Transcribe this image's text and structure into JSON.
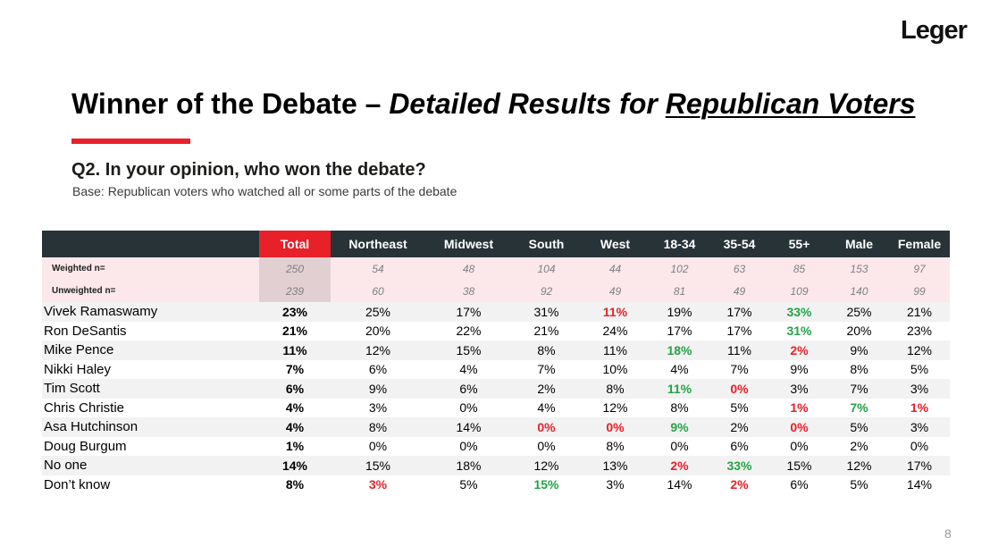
{
  "logo": {
    "text": "Leger"
  },
  "title": {
    "part1": "Winner of the Debate – ",
    "part2": "Detailed Results for ",
    "part3": "Republican Voters"
  },
  "question": "Q2. In your opinion, who won the debate?",
  "base": "Base: Republican voters who watched all or some parts of the debate",
  "table": {
    "columns": [
      "Total",
      "Northeast",
      "Midwest",
      "South",
      "West",
      "18-34",
      "35-54",
      "55+",
      "Male",
      "Female"
    ],
    "weighted": {
      "label": "Weighted n=",
      "values": [
        "250",
        "54",
        "48",
        "104",
        "44",
        "102",
        "63",
        "85",
        "153",
        "97"
      ]
    },
    "unweighted": {
      "label": "Unweighted n=",
      "values": [
        "239",
        "60",
        "38",
        "92",
        "49",
        "81",
        "49",
        "109",
        "140",
        "99"
      ]
    },
    "rows": [
      {
        "name": "Vivek Ramaswamy",
        "values": [
          "23%",
          "25%",
          "17%",
          "31%",
          "11%",
          "19%",
          "17%",
          "33%",
          "25%",
          "21%"
        ],
        "flags": [
          "",
          "",
          "",
          "",
          "lo",
          "",
          "",
          "hi",
          "",
          ""
        ]
      },
      {
        "name": "Ron DeSantis",
        "values": [
          "21%",
          "20%",
          "22%",
          "21%",
          "24%",
          "17%",
          "17%",
          "31%",
          "20%",
          "23%"
        ],
        "flags": [
          "",
          "",
          "",
          "",
          "",
          "",
          "",
          "hi",
          "",
          ""
        ]
      },
      {
        "name": "Mike Pence",
        "values": [
          "11%",
          "12%",
          "15%",
          "8%",
          "11%",
          "18%",
          "11%",
          "2%",
          "9%",
          "12%"
        ],
        "flags": [
          "",
          "",
          "",
          "",
          "",
          "hi",
          "",
          "lo",
          "",
          ""
        ]
      },
      {
        "name": "Nikki Haley",
        "values": [
          "7%",
          "6%",
          "4%",
          "7%",
          "10%",
          "4%",
          "7%",
          "9%",
          "8%",
          "5%"
        ],
        "flags": [
          "",
          "",
          "",
          "",
          "",
          "",
          "",
          "",
          "",
          ""
        ]
      },
      {
        "name": "Tim Scott",
        "values": [
          "6%",
          "9%",
          "6%",
          "2%",
          "8%",
          "11%",
          "0%",
          "3%",
          "7%",
          "3%"
        ],
        "flags": [
          "",
          "",
          "",
          "",
          "",
          "hi",
          "lo",
          "",
          "",
          ""
        ]
      },
      {
        "name": "Chris Christie",
        "values": [
          "4%",
          "3%",
          "0%",
          "4%",
          "12%",
          "8%",
          "5%",
          "1%",
          "7%",
          "1%"
        ],
        "flags": [
          "",
          "",
          "",
          "",
          "",
          "",
          "",
          "lo",
          "hi",
          "lo"
        ]
      },
      {
        "name": "Asa Hutchinson",
        "values": [
          "4%",
          "8%",
          "14%",
          "0%",
          "0%",
          "9%",
          "2%",
          "0%",
          "5%",
          "3%"
        ],
        "flags": [
          "",
          "",
          "",
          "lo",
          "lo",
          "hi",
          "",
          "lo",
          "",
          ""
        ]
      },
      {
        "name": "Doug Burgum",
        "values": [
          "1%",
          "0%",
          "0%",
          "0%",
          "8%",
          "0%",
          "6%",
          "0%",
          "2%",
          "0%"
        ],
        "flags": [
          "",
          "",
          "",
          "",
          "",
          "",
          "",
          "",
          "",
          ""
        ]
      },
      {
        "name": "No one",
        "values": [
          "14%",
          "15%",
          "18%",
          "12%",
          "13%",
          "2%",
          "33%",
          "15%",
          "12%",
          "17%"
        ],
        "flags": [
          "",
          "",
          "",
          "",
          "",
          "lo",
          "hi",
          "",
          "",
          ""
        ]
      },
      {
        "name": "Don’t know",
        "values": [
          "8%",
          "3%",
          "5%",
          "15%",
          "3%",
          "14%",
          "2%",
          "6%",
          "5%",
          "14%"
        ],
        "flags": [
          "",
          "lo",
          "",
          "hi",
          "",
          "",
          "lo",
          "",
          "",
          ""
        ]
      }
    ]
  },
  "colors": {
    "highlight_high": "#23a347",
    "highlight_low": "#e8202a",
    "accent": "#e8202a",
    "header_bg": "#283338"
  },
  "page_number": "8"
}
